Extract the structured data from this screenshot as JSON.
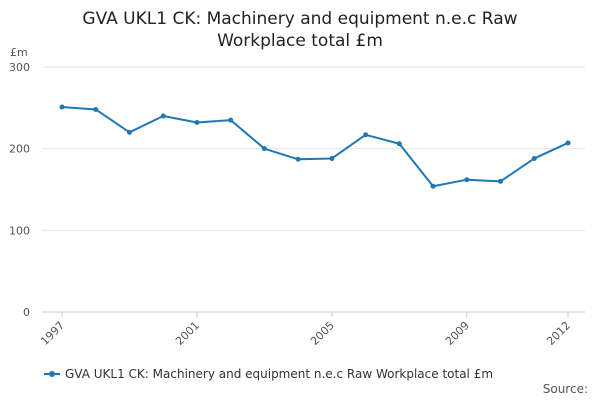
{
  "chart_data": {
    "type": "line",
    "title_lines": [
      "GVA UKL1 CK: Machinery and equipment n.e.c Raw",
      "Workplace total £m"
    ],
    "ylabel": "£m",
    "ylim": [
      0,
      300
    ],
    "yticks": [
      0,
      100,
      200,
      300
    ],
    "x": [
      1997,
      1998,
      1999,
      2000,
      2001,
      2002,
      2003,
      2004,
      2005,
      2006,
      2007,
      2008,
      2009,
      2010,
      2011,
      2012
    ],
    "xticks": [
      1997,
      2001,
      2005,
      2009,
      2012
    ],
    "series": [
      {
        "name": "GVA UKL1 CK: Machinery and equipment n.e.c Raw Workplace total £m",
        "values": [
          251,
          248,
          220,
          240,
          232,
          235,
          200,
          187,
          188,
          217,
          206,
          154,
          162,
          160,
          188,
          207
        ],
        "color": "#1f77b4"
      }
    ],
    "grid": true,
    "legend_position": "bottom-left"
  },
  "source_label": "Source:"
}
